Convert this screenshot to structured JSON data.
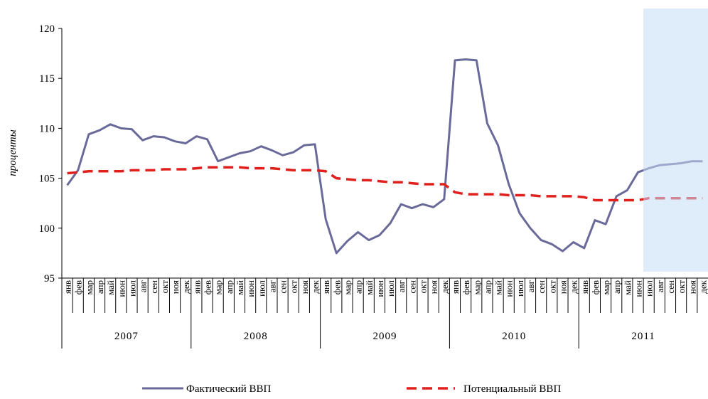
{
  "chart_data": {
    "type": "line",
    "y_label": "проценты",
    "categories": [
      "янв",
      "фев",
      "мар",
      "апр",
      "май",
      "июн",
      "июл",
      "авг",
      "сен",
      "окт",
      "ноя",
      "дек",
      "янв",
      "фев",
      "мар",
      "апр",
      "май",
      "июн",
      "июл",
      "авг",
      "сен",
      "окт",
      "ноя",
      "дек",
      "янв",
      "фев",
      "мар",
      "апр",
      "май",
      "июн",
      "июл",
      "авг",
      "сен",
      "окт",
      "ноя",
      "дек",
      "янв",
      "фев",
      "мар",
      "апр",
      "май",
      "июн",
      "июл",
      "авг",
      "сен",
      "окт",
      "ноя",
      "дек",
      "янв",
      "фев",
      "мар",
      "апр",
      "май",
      "июн",
      "июл",
      "авг",
      "сен",
      "окт",
      "ноя",
      "дек"
    ],
    "years": [
      "2007",
      "2008",
      "2009",
      "2010",
      "2011"
    ],
    "series": [
      {
        "name": "Фактический ВВП",
        "color": "#6a6a9a",
        "dashed": false,
        "values": [
          104.3,
          105.8,
          109.4,
          109.8,
          110.4,
          110.0,
          109.9,
          108.8,
          109.2,
          109.1,
          108.7,
          108.5,
          109.2,
          108.9,
          106.7,
          107.1,
          107.5,
          107.7,
          108.2,
          107.8,
          107.3,
          107.6,
          108.3,
          108.4,
          100.9,
          97.5,
          98.7,
          99.6,
          98.8,
          99.3,
          100.5,
          102.4,
          102.0,
          102.4,
          102.1,
          102.9,
          116.8,
          116.9,
          116.8,
          110.5,
          108.3,
          104.4,
          101.5,
          100.0,
          98.8,
          98.4,
          97.7,
          98.6,
          98.0,
          100.8,
          100.4,
          103.2,
          103.8,
          105.6,
          106.0,
          106.3,
          106.4,
          106.5,
          106.7,
          106.7
        ]
      },
      {
        "name": "Потенциальный ВВП",
        "color": "#e0201c",
        "dashed": true,
        "values": [
          105.5,
          105.6,
          105.7,
          105.7,
          105.7,
          105.7,
          105.8,
          105.8,
          105.8,
          105.9,
          105.9,
          105.9,
          106.0,
          106.1,
          106.1,
          106.1,
          106.1,
          106.0,
          106.0,
          106.0,
          105.9,
          105.8,
          105.8,
          105.8,
          105.7,
          105.0,
          104.9,
          104.8,
          104.8,
          104.7,
          104.6,
          104.6,
          104.5,
          104.4,
          104.4,
          104.4,
          103.6,
          103.4,
          103.4,
          103.4,
          103.4,
          103.3,
          103.3,
          103.3,
          103.2,
          103.2,
          103.2,
          103.2,
          103.1,
          102.8,
          102.8,
          102.8,
          102.8,
          102.8,
          103.0,
          103.0,
          103.0,
          103.0,
          103.0,
          103.0
        ]
      }
    ],
    "ylim": [
      95,
      120
    ],
    "yticks": [
      95,
      100,
      105,
      110,
      115,
      120
    ],
    "shade_start_index": 54,
    "shade_color": "#c5dcf6",
    "legend": "bottom"
  }
}
